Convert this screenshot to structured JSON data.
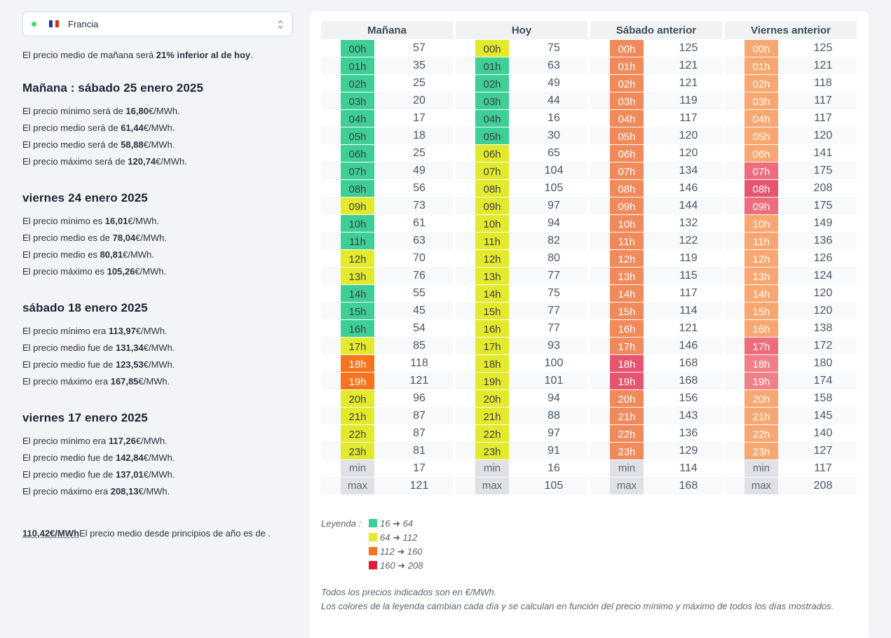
{
  "selector": {
    "country": "Francia"
  },
  "summary": {
    "prefix": "El precio medio de mañana será ",
    "bold": "21% inferior al de hoy",
    "suffix": "."
  },
  "days": [
    {
      "title": "Mañana : sábado 25 enero 2025",
      "lines": [
        {
          "pre": "El precio mínimo será de ",
          "val": "16,80",
          "unit": "€/MWh."
        },
        {
          "pre": "El precio medio será de ",
          "val": "61,44",
          "unit": "€/MWh."
        },
        {
          "pre": "El precio medio será de ",
          "val": "58,88",
          "unit": "€/MWh."
        },
        {
          "pre": "El precio máximo será de ",
          "val": "120,74",
          "unit": "€/MWh."
        }
      ]
    },
    {
      "title": "viernes 24 enero 2025",
      "lines": [
        {
          "pre": "El precio mínimo es ",
          "val": "16,01",
          "unit": "€/MWh."
        },
        {
          "pre": "El precio medio es de ",
          "val": "78,04",
          "unit": "€/MWh."
        },
        {
          "pre": "El precio medio es ",
          "val": "80,81",
          "unit": "€/MWh."
        },
        {
          "pre": "El precio máximo es ",
          "val": "105,26",
          "unit": "€/MWh."
        }
      ]
    },
    {
      "title": "sábado 18 enero 2025",
      "lines": [
        {
          "pre": "El precio mínimo era ",
          "val": "113,97",
          "unit": "€/MWh."
        },
        {
          "pre": "El precio medio fue de ",
          "val": "131,34",
          "unit": "€/MWh."
        },
        {
          "pre": "El precio medio fue de ",
          "val": "123,53",
          "unit": "€/MWh."
        },
        {
          "pre": "El precio máximo era ",
          "val": "167,85",
          "unit": "€/MWh."
        }
      ]
    },
    {
      "title": "viernes 17 enero 2025",
      "lines": [
        {
          "pre": "El precio mínimo era ",
          "val": "117,26",
          "unit": "€/MWh."
        },
        {
          "pre": "El precio medio fue de ",
          "val": "142,84",
          "unit": "€/MWh."
        },
        {
          "pre": "El precio medio fue de ",
          "val": "137,01",
          "unit": "€/MWh."
        },
        {
          "pre": "El precio máximo era ",
          "val": "208,13",
          "unit": "€/MWh."
        }
      ]
    }
  ],
  "ytd": {
    "value": "110,42",
    "unit": "€/MWh",
    "text": "El precio medio desde principios de año es de ."
  },
  "hours": [
    "00h",
    "01h",
    "02h",
    "03h",
    "04h",
    "05h",
    "06h",
    "07h",
    "08h",
    "09h",
    "10h",
    "11h",
    "12h",
    "13h",
    "14h",
    "15h",
    "16h",
    "17h",
    "18h",
    "19h",
    "20h",
    "21h",
    "22h",
    "23h"
  ],
  "stat_labels": [
    "min",
    "max"
  ],
  "colors": {
    "green": "#3ecf96",
    "yellow": "#e3ea2c",
    "orange": "#f6741f",
    "red": "#e11d3b",
    "salmon_light": "#f9a771",
    "salmon": "#f69a5c",
    "salmon_dark": "#f08a5b",
    "pink_light": "#f17f87",
    "pink": "#ee6c7c",
    "pink_dark": "#e5556f"
  },
  "columns": [
    {
      "title": "Mañana",
      "prices": [
        57,
        35,
        25,
        20,
        17,
        18,
        25,
        49,
        56,
        73,
        61,
        63,
        70,
        76,
        55,
        45,
        54,
        85,
        118,
        121,
        96,
        87,
        87,
        81
      ],
      "colors": [
        "green",
        "green",
        "green",
        "green",
        "green",
        "green",
        "green",
        "green",
        "green",
        "yellow",
        "green",
        "green",
        "yellow",
        "yellow",
        "green",
        "green",
        "green",
        "yellow",
        "orange",
        "orange",
        "yellow",
        "yellow",
        "yellow",
        "yellow"
      ],
      "min": 17,
      "max": 121
    },
    {
      "title": "Hoy",
      "prices": [
        75,
        63,
        49,
        44,
        16,
        30,
        65,
        104,
        105,
        97,
        94,
        82,
        80,
        77,
        75,
        77,
        77,
        93,
        100,
        101,
        94,
        88,
        97,
        91
      ],
      "colors": [
        "yellow",
        "green",
        "green",
        "green",
        "green",
        "green",
        "yellow",
        "yellow",
        "yellow",
        "yellow",
        "yellow",
        "yellow",
        "yellow",
        "yellow",
        "yellow",
        "yellow",
        "yellow",
        "yellow",
        "yellow",
        "yellow",
        "yellow",
        "yellow",
        "yellow",
        "yellow"
      ],
      "min": 16,
      "max": 105
    },
    {
      "title": "Sábado anterior",
      "prices": [
        125,
        121,
        121,
        119,
        117,
        120,
        120,
        134,
        146,
        144,
        132,
        122,
        119,
        115,
        117,
        114,
        121,
        146,
        168,
        168,
        156,
        143,
        136,
        129
      ],
      "colors": [
        "salmon_dark",
        "salmon_dark",
        "salmon_dark",
        "salmon_dark",
        "salmon_dark",
        "salmon_dark",
        "salmon_dark",
        "salmon_dark",
        "salmon_dark",
        "salmon_dark",
        "salmon_dark",
        "salmon_dark",
        "salmon_dark",
        "salmon_dark",
        "salmon_dark",
        "salmon_dark",
        "salmon_dark",
        "salmon_dark",
        "pink_dark",
        "pink_dark",
        "salmon_dark",
        "salmon_dark",
        "salmon_dark",
        "salmon_dark"
      ],
      "min": 114,
      "max": 168
    },
    {
      "title": "Viernes anterior",
      "prices": [
        125,
        121,
        118,
        117,
        117,
        120,
        141,
        175,
        208,
        175,
        149,
        136,
        126,
        124,
        120,
        120,
        138,
        172,
        180,
        174,
        158,
        145,
        140,
        127
      ],
      "colors": [
        "salmon_light",
        "salmon_light",
        "salmon_light",
        "salmon_light",
        "salmon_light",
        "salmon_light",
        "salmon_light",
        "pink",
        "pink_dark",
        "pink",
        "salmon_light",
        "salmon_light",
        "salmon_light",
        "salmon_light",
        "salmon_light",
        "salmon_light",
        "salmon_light",
        "pink",
        "pink_light",
        "pink_light",
        "salmon_light",
        "salmon_light",
        "salmon_light",
        "salmon_light"
      ],
      "min": 117,
      "max": 208
    }
  ],
  "legend": {
    "title": "Leyenda :",
    "items": [
      {
        "color": "#3ecf96",
        "text": "16 ➜ 64"
      },
      {
        "color": "#e3ea2c",
        "text": "64 ➜ 112"
      },
      {
        "color": "#f6741f",
        "text": "112 ➜ 160"
      },
      {
        "color": "#e11d3b",
        "text": "160 ➜ 208"
      }
    ]
  },
  "notes": [
    "Todos los precios indicados son en €/MWh.",
    "Los colores de la leyenda cambian cada día y se calculan en función del precio mínimo y máximo de todos los días mostrados."
  ]
}
